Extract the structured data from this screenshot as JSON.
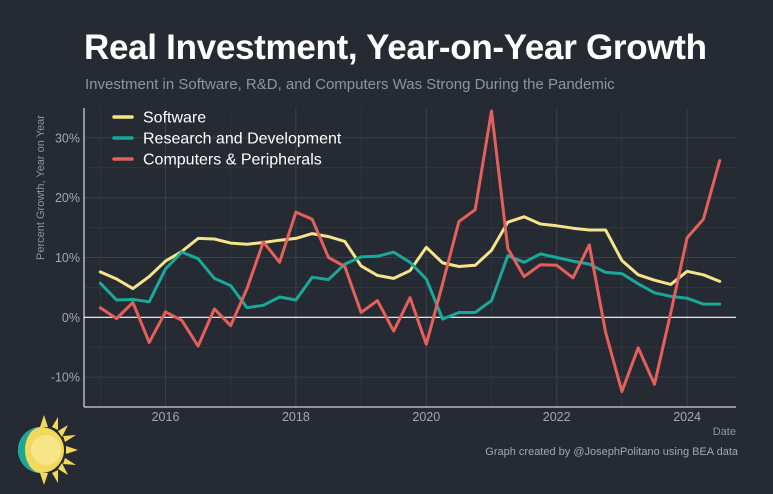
{
  "chart_data": {
    "type": "line",
    "title": "Real Investment, Year-on-Year Growth",
    "subtitle": "Investment in Software, R&D, and Computers Was Strong During the Pandemic",
    "xlabel": "Date",
    "ylabel": "Percent Growth, Year on Year",
    "xlim": [
      2014.75,
      2024.75
    ],
    "ylim": [
      -15,
      35
    ],
    "x_ticks": [
      2016,
      2018,
      2020,
      2022,
      2024
    ],
    "x_tick_labels": [
      "2016",
      "2018",
      "2020",
      "2022",
      "2024"
    ],
    "y_ticks": [
      -10,
      0,
      10,
      20,
      30
    ],
    "y_tick_labels": [
      "-10%",
      "0%",
      "10%",
      "20%",
      "30%"
    ],
    "grid": true,
    "legend_position": "top-left",
    "x": [
      2015.0,
      2015.25,
      2015.5,
      2015.75,
      2016.0,
      2016.25,
      2016.5,
      2016.75,
      2017.0,
      2017.25,
      2017.5,
      2017.75,
      2018.0,
      2018.25,
      2018.5,
      2018.75,
      2019.0,
      2019.25,
      2019.5,
      2019.75,
      2020.0,
      2020.25,
      2020.5,
      2020.75,
      2021.0,
      2021.25,
      2021.5,
      2021.75,
      2022.0,
      2022.25,
      2022.5,
      2022.75,
      2023.0,
      2023.25,
      2023.5,
      2023.75,
      2024.0,
      2024.25,
      2024.5
    ],
    "series": [
      {
        "name": "Software",
        "color": "#f5e48a",
        "values": [
          7.6,
          6.4,
          4.8,
          6.8,
          9.4,
          11.0,
          13.2,
          13.1,
          12.4,
          12.2,
          12.5,
          12.9,
          13.2,
          14.0,
          13.5,
          12.7,
          8.6,
          7.0,
          6.5,
          7.8,
          11.7,
          9.1,
          8.5,
          8.7,
          11.2,
          15.9,
          16.8,
          15.6,
          15.3,
          14.9,
          14.6,
          14.6,
          9.5,
          7.1,
          6.2,
          5.5,
          7.7,
          7.1,
          6.0
        ]
      },
      {
        "name": "Research and Development",
        "color": "#1aa899",
        "values": [
          5.7,
          2.9,
          3.0,
          2.6,
          8.1,
          10.9,
          9.8,
          6.5,
          5.3,
          1.6,
          2.0,
          3.4,
          2.9,
          6.7,
          6.3,
          8.9,
          10.1,
          10.2,
          10.9,
          9.2,
          6.4,
          -0.3,
          0.8,
          0.8,
          2.8,
          10.3,
          9.2,
          10.6,
          10.0,
          9.4,
          8.9,
          7.5,
          7.3,
          5.6,
          4.1,
          3.5,
          3.2,
          2.2,
          2.2
        ]
      },
      {
        "name": "Computers & Peripherals",
        "color": "#e5605a",
        "values": [
          1.6,
          -0.2,
          2.5,
          -4.2,
          0.9,
          -0.5,
          -4.8,
          1.4,
          -1.4,
          4.8,
          12.6,
          9.2,
          17.6,
          16.4,
          10.0,
          8.5,
          0.8,
          2.8,
          -2.3,
          3.3,
          -4.5,
          5.6,
          16.0,
          18.0,
          34.5,
          11.5,
          6.8,
          8.8,
          8.7,
          6.6,
          12.1,
          -2.5,
          -12.4,
          -5.1,
          -11.2,
          0.8,
          13.3,
          16.4,
          26.2
        ]
      }
    ]
  },
  "credit": "Graph created by @JosephPolitano using BEA data",
  "logo": {
    "name": "sun-logo",
    "primary": "#f2d95c",
    "ring": "#1aa899"
  },
  "colors": {
    "background": "#252a33",
    "grid": "#3a404b",
    "axis": "#ffffff"
  }
}
